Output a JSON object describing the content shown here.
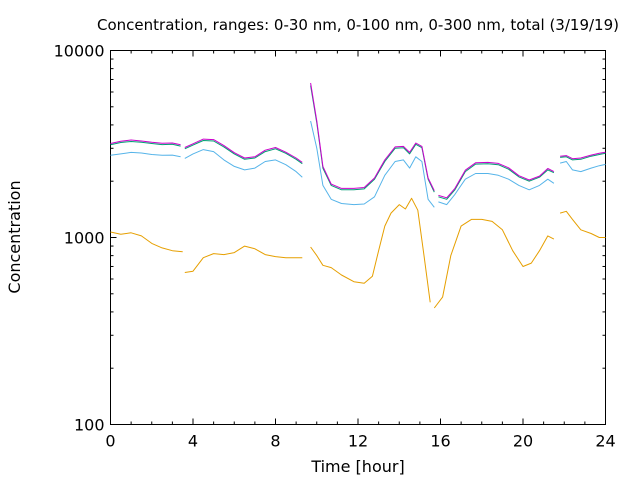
{
  "chart_data": {
    "type": "line",
    "title": "Concentration, ranges: 0-30 nm, 0-100 nm, 0-300 nm, total (3/19/19)",
    "xlabel": "Time [hour]",
    "ylabel": "Concentration",
    "xlim": [
      0,
      24
    ],
    "ylim": [
      100,
      10000
    ],
    "yscale": "log",
    "grid": false,
    "x_ticks": [
      0,
      4,
      8,
      12,
      16,
      20,
      24
    ],
    "y_ticks": [
      100,
      1000,
      10000
    ],
    "x_tick_labels": [
      "0",
      "4",
      "8",
      "12",
      "16",
      "20",
      "24"
    ],
    "y_tick_labels": [
      "100",
      "1000",
      "10000"
    ],
    "colors": {
      "range_0_30": "#e69f00",
      "range_0_100": "#56b4e9",
      "range_0_300": "#009e73",
      "total": "#cc00cc"
    },
    "series": [
      {
        "color_key": "range_0_30",
        "segments": [
          [
            [
              0.0,
              1070
            ],
            [
              0.5,
              1040
            ],
            [
              1.0,
              1060
            ],
            [
              1.5,
              1020
            ],
            [
              2.0,
              930
            ],
            [
              2.5,
              880
            ],
            [
              3.0,
              850
            ],
            [
              3.5,
              840
            ]
          ],
          [
            [
              3.6,
              650
            ],
            [
              4.0,
              660
            ],
            [
              4.5,
              780
            ],
            [
              5.0,
              820
            ],
            [
              5.5,
              810
            ],
            [
              6.0,
              830
            ],
            [
              6.5,
              900
            ],
            [
              7.0,
              870
            ],
            [
              7.5,
              810
            ],
            [
              8.0,
              790
            ],
            [
              8.5,
              780
            ],
            [
              9.0,
              780
            ],
            [
              9.3,
              780
            ]
          ],
          [
            [
              9.7,
              890
            ],
            [
              10.0,
              800
            ],
            [
              10.3,
              710
            ],
            [
              10.7,
              690
            ],
            [
              11.2,
              630
            ],
            [
              11.8,
              580
            ],
            [
              12.3,
              570
            ],
            [
              12.7,
              620
            ],
            [
              13.0,
              850
            ],
            [
              13.3,
              1150
            ],
            [
              13.6,
              1350
            ],
            [
              14.0,
              1500
            ],
            [
              14.3,
              1420
            ],
            [
              14.6,
              1620
            ],
            [
              14.9,
              1400
            ],
            [
              15.2,
              800
            ],
            [
              15.5,
              450
            ]
          ],
          [
            [
              15.7,
              420
            ],
            [
              16.1,
              480
            ],
            [
              16.5,
              800
            ],
            [
              17.0,
              1150
            ],
            [
              17.5,
              1250
            ],
            [
              18.0,
              1250
            ],
            [
              18.5,
              1220
            ],
            [
              19.0,
              1100
            ],
            [
              19.5,
              850
            ],
            [
              20.0,
              700
            ],
            [
              20.4,
              730
            ],
            [
              20.8,
              850
            ],
            [
              21.2,
              1020
            ],
            [
              21.5,
              980
            ]
          ],
          [
            [
              21.8,
              1350
            ],
            [
              22.1,
              1380
            ],
            [
              22.4,
              1250
            ],
            [
              22.8,
              1100
            ],
            [
              23.3,
              1050
            ],
            [
              23.7,
              1000
            ],
            [
              24.0,
              1000
            ]
          ]
        ]
      },
      {
        "color_key": "range_0_100",
        "segments": [
          [
            [
              0.0,
              2750
            ],
            [
              0.5,
              2800
            ],
            [
              1.0,
              2850
            ],
            [
              1.5,
              2830
            ],
            [
              2.0,
              2780
            ],
            [
              2.5,
              2750
            ],
            [
              3.0,
              2760
            ],
            [
              3.4,
              2700
            ]
          ],
          [
            [
              3.6,
              2650
            ],
            [
              4.0,
              2800
            ],
            [
              4.5,
              2950
            ],
            [
              5.0,
              2880
            ],
            [
              5.5,
              2600
            ],
            [
              6.0,
              2400
            ],
            [
              6.5,
              2300
            ],
            [
              7.0,
              2350
            ],
            [
              7.5,
              2550
            ],
            [
              8.0,
              2600
            ],
            [
              8.5,
              2450
            ],
            [
              9.0,
              2250
            ],
            [
              9.3,
              2100
            ]
          ],
          [
            [
              9.7,
              4200
            ],
            [
              10.0,
              3000
            ],
            [
              10.3,
              1900
            ],
            [
              10.7,
              1600
            ],
            [
              11.2,
              1520
            ],
            [
              11.8,
              1500
            ],
            [
              12.3,
              1510
            ],
            [
              12.8,
              1650
            ],
            [
              13.3,
              2150
            ],
            [
              13.8,
              2550
            ],
            [
              14.2,
              2600
            ],
            [
              14.5,
              2350
            ],
            [
              14.8,
              2700
            ],
            [
              15.1,
              2550
            ],
            [
              15.4,
              1600
            ],
            [
              15.7,
              1450
            ]
          ],
          [
            [
              15.9,
              1550
            ],
            [
              16.3,
              1500
            ],
            [
              16.7,
              1700
            ],
            [
              17.2,
              2050
            ],
            [
              17.7,
              2200
            ],
            [
              18.3,
              2200
            ],
            [
              18.8,
              2150
            ],
            [
              19.3,
              2050
            ],
            [
              19.8,
              1900
            ],
            [
              20.3,
              1800
            ],
            [
              20.8,
              1900
            ],
            [
              21.2,
              2050
            ],
            [
              21.5,
              1950
            ]
          ],
          [
            [
              21.8,
              2500
            ],
            [
              22.1,
              2550
            ],
            [
              22.4,
              2300
            ],
            [
              22.8,
              2250
            ],
            [
              23.3,
              2350
            ],
            [
              23.7,
              2420
            ],
            [
              24.0,
              2460
            ]
          ]
        ]
      },
      {
        "color_key": "range_0_300",
        "segments": [
          [
            [
              0.0,
              3130
            ],
            [
              0.5,
              3220
            ],
            [
              1.0,
              3260
            ],
            [
              1.5,
              3230
            ],
            [
              2.0,
              3180
            ],
            [
              2.5,
              3140
            ],
            [
              3.0,
              3150
            ],
            [
              3.4,
              3080
            ]
          ],
          [
            [
              3.6,
              2980
            ],
            [
              4.0,
              3120
            ],
            [
              4.5,
              3300
            ],
            [
              5.0,
              3280
            ],
            [
              5.5,
              3050
            ],
            [
              6.0,
              2800
            ],
            [
              6.5,
              2620
            ],
            [
              7.0,
              2660
            ],
            [
              7.5,
              2880
            ],
            [
              8.0,
              2980
            ],
            [
              8.5,
              2820
            ],
            [
              9.0,
              2620
            ],
            [
              9.3,
              2480
            ]
          ],
          [
            [
              9.7,
              6500
            ],
            [
              10.0,
              4100
            ],
            [
              10.3,
              2350
            ],
            [
              10.7,
              1900
            ],
            [
              11.2,
              1800
            ],
            [
              11.8,
              1800
            ],
            [
              12.3,
              1820
            ],
            [
              12.8,
              2050
            ],
            [
              13.3,
              2550
            ],
            [
              13.8,
              3000
            ],
            [
              14.2,
              3020
            ],
            [
              14.5,
              2800
            ],
            [
              14.8,
              3150
            ],
            [
              15.1,
              3020
            ],
            [
              15.4,
              2050
            ],
            [
              15.7,
              1750
            ]
          ],
          [
            [
              15.9,
              1650
            ],
            [
              16.3,
              1600
            ],
            [
              16.7,
              1800
            ],
            [
              17.2,
              2250
            ],
            [
              17.7,
              2470
            ],
            [
              18.3,
              2480
            ],
            [
              18.8,
              2450
            ],
            [
              19.3,
              2320
            ],
            [
              19.8,
              2110
            ],
            [
              20.3,
              2000
            ],
            [
              20.8,
              2100
            ],
            [
              21.2,
              2300
            ],
            [
              21.5,
              2220
            ]
          ],
          [
            [
              21.8,
              2680
            ],
            [
              22.1,
              2700
            ],
            [
              22.4,
              2600
            ],
            [
              22.8,
              2620
            ],
            [
              23.3,
              2720
            ],
            [
              23.7,
              2780
            ],
            [
              24.0,
              2820
            ]
          ]
        ]
      },
      {
        "color_key": "total",
        "segments": [
          [
            [
              0.0,
              3180
            ],
            [
              0.5,
              3270
            ],
            [
              1.0,
              3320
            ],
            [
              1.5,
              3280
            ],
            [
              2.0,
              3230
            ],
            [
              2.5,
              3190
            ],
            [
              3.0,
              3200
            ],
            [
              3.4,
              3130
            ]
          ],
          [
            [
              3.6,
              3030
            ],
            [
              4.0,
              3170
            ],
            [
              4.5,
              3360
            ],
            [
              5.0,
              3340
            ],
            [
              5.5,
              3100
            ],
            [
              6.0,
              2840
            ],
            [
              6.5,
              2660
            ],
            [
              7.0,
              2700
            ],
            [
              7.5,
              2930
            ],
            [
              8.0,
              3030
            ],
            [
              8.5,
              2860
            ],
            [
              9.0,
              2660
            ],
            [
              9.3,
              2520
            ]
          ],
          [
            [
              9.7,
              6700
            ],
            [
              10.0,
              4200
            ],
            [
              10.3,
              2400
            ],
            [
              10.7,
              1930
            ],
            [
              11.2,
              1830
            ],
            [
              11.8,
              1830
            ],
            [
              12.3,
              1850
            ],
            [
              12.8,
              2080
            ],
            [
              13.3,
              2600
            ],
            [
              13.8,
              3050
            ],
            [
              14.2,
              3070
            ],
            [
              14.5,
              2850
            ],
            [
              14.8,
              3200
            ],
            [
              15.1,
              3070
            ],
            [
              15.4,
              2080
            ],
            [
              15.7,
              1780
            ]
          ],
          [
            [
              15.9,
              1680
            ],
            [
              16.3,
              1630
            ],
            [
              16.7,
              1830
            ],
            [
              17.2,
              2290
            ],
            [
              17.7,
              2510
            ],
            [
              18.3,
              2520
            ],
            [
              18.8,
              2490
            ],
            [
              19.3,
              2360
            ],
            [
              19.8,
              2140
            ],
            [
              20.3,
              2030
            ],
            [
              20.8,
              2130
            ],
            [
              21.2,
              2340
            ],
            [
              21.5,
              2250
            ]
          ],
          [
            [
              21.8,
              2720
            ],
            [
              22.1,
              2740
            ],
            [
              22.4,
              2640
            ],
            [
              22.8,
              2660
            ],
            [
              23.3,
              2760
            ],
            [
              23.7,
              2820
            ],
            [
              24.0,
              2860
            ]
          ]
        ]
      }
    ]
  }
}
